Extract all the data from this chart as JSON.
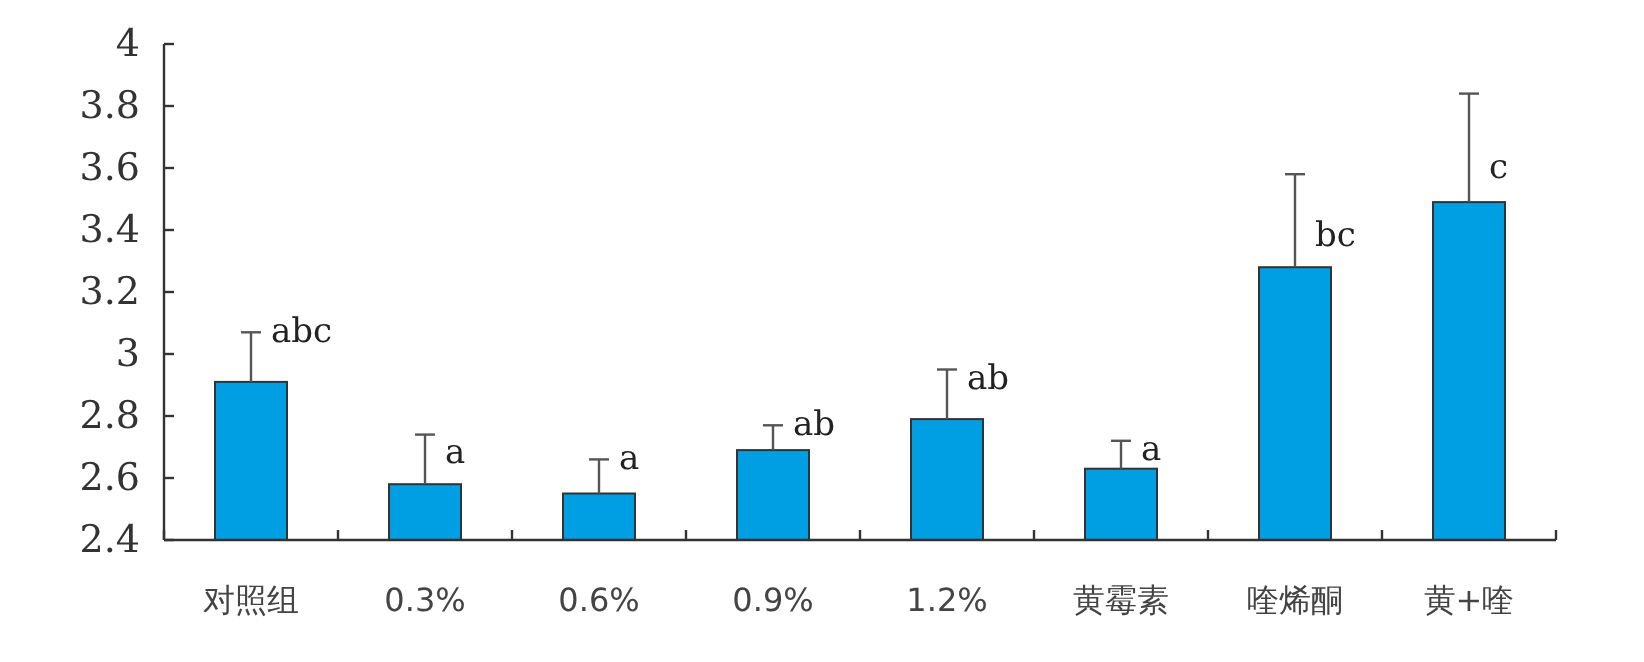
{
  "chart_data": {
    "type": "bar",
    "categories": [
      "对照组",
      "0.3%",
      "0.6%",
      "0.9%",
      "1.2%",
      "黄霉素",
      "喹烯酮",
      "黄+喹"
    ],
    "values": [
      2.91,
      2.58,
      2.55,
      2.69,
      2.79,
      2.63,
      3.28,
      3.49
    ],
    "errors": [
      [
        2.91,
        3.07
      ],
      [
        2.58,
        2.74
      ],
      [
        2.55,
        2.66
      ],
      [
        2.69,
        2.77
      ],
      [
        2.79,
        2.95
      ],
      [
        2.63,
        2.72
      ],
      [
        3.28,
        3.58
      ],
      [
        3.49,
        3.84
      ]
    ],
    "color": "#009fe3",
    "ylim": [
      2.4,
      4
    ],
    "yticks": [
      2.4,
      2.6,
      2.8,
      3,
      3.2,
      3.4,
      3.6,
      3.8,
      4
    ],
    "annotations": [
      {
        "text": "abc",
        "x": "对照组",
        "y": 3.07
      },
      {
        "text": "a",
        "x": "0.3%",
        "y": 2.68
      },
      {
        "text": "a",
        "x": "0.6%",
        "y": 2.66
      },
      {
        "text": "ab",
        "x": "0.9%",
        "y": 2.77
      },
      {
        "text": "ab",
        "x": "1.2%",
        "y": 2.92
      },
      {
        "text": "a",
        "x": "黄霉素",
        "y": 2.69
      },
      {
        "text": "bc",
        "x": "喹烯酮",
        "y": 3.38
      },
      {
        "text": "c",
        "x": "黄+喹",
        "y": 3.6
      }
    ],
    "grid": false
  }
}
